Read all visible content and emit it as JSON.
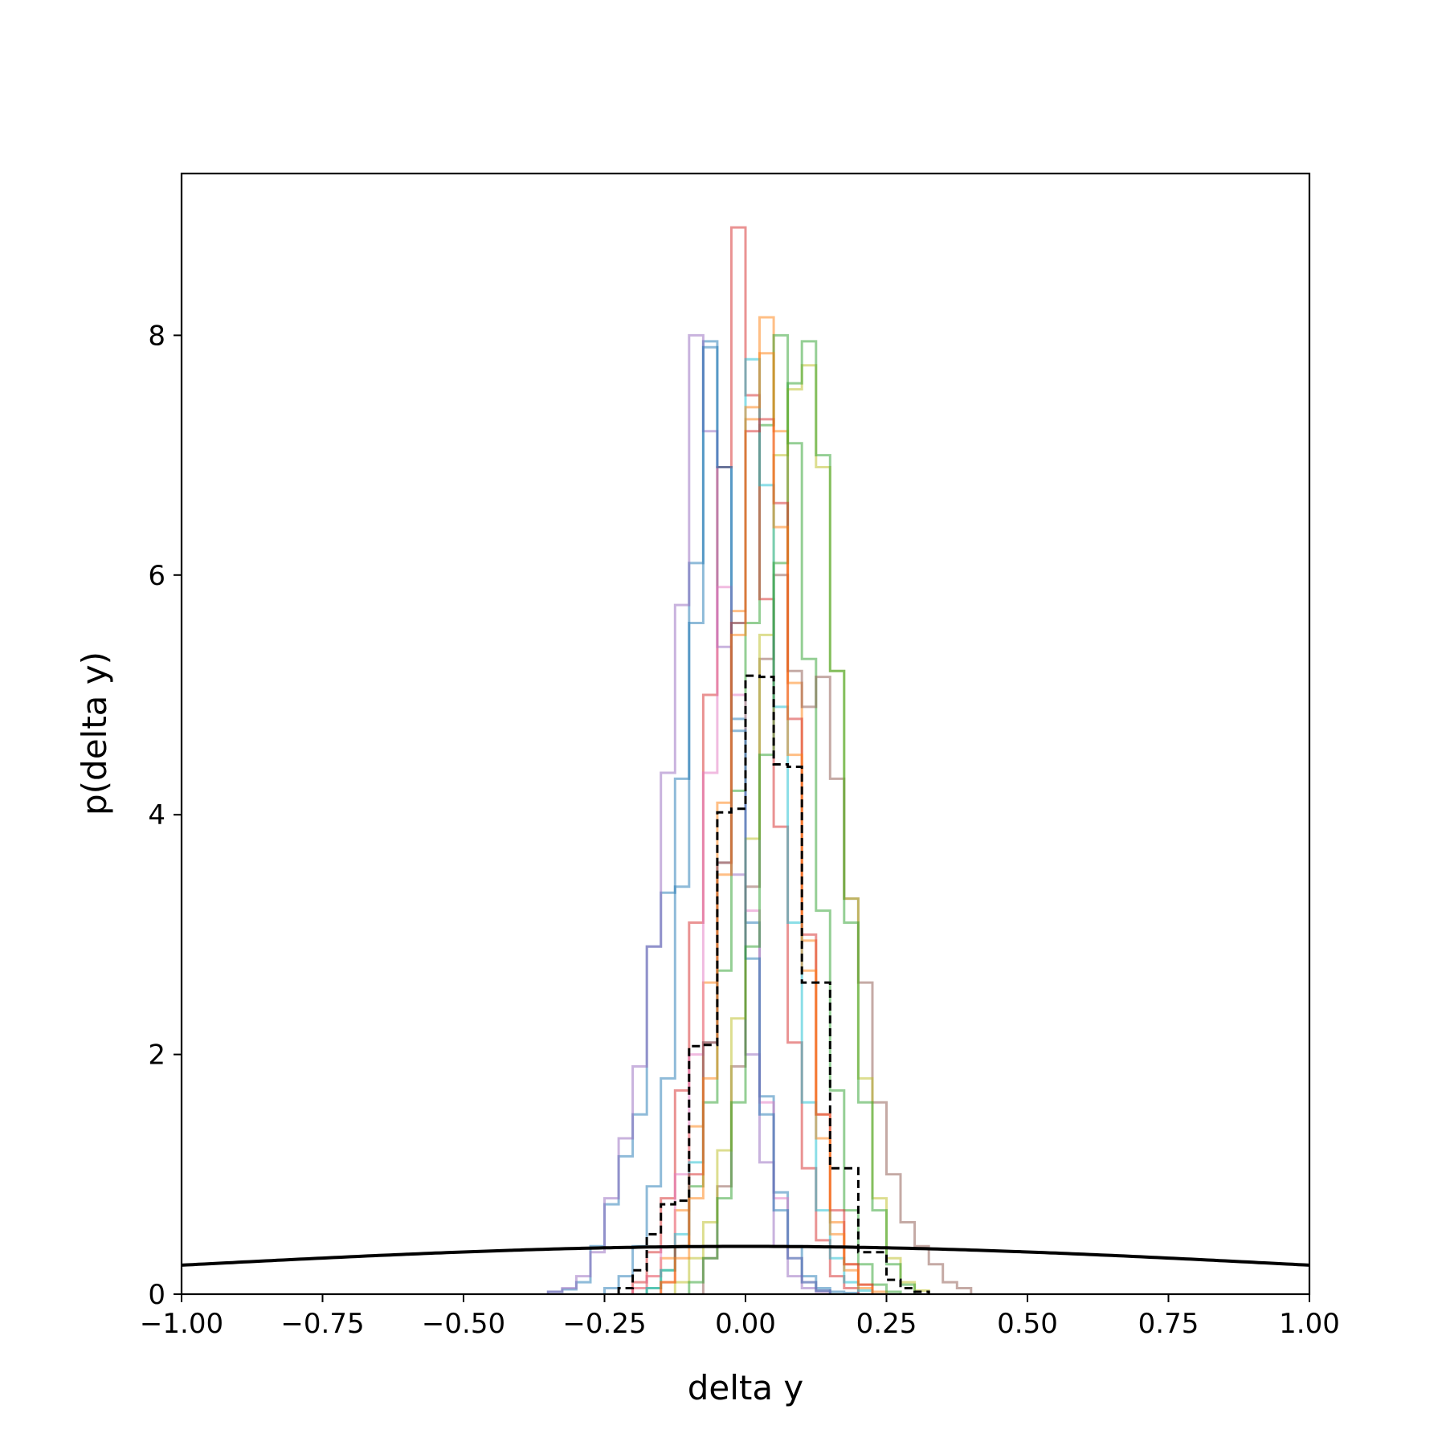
{
  "chart_data": {
    "type": "histogram",
    "title": "",
    "xlabel": "delta y",
    "ylabel": "p(delta y)",
    "xlim": [
      -1.0,
      1.0
    ],
    "ylim": [
      0,
      9.35
    ],
    "xticks": [
      -1.0,
      -0.75,
      -0.5,
      -0.25,
      0.0,
      0.25,
      0.5,
      0.75,
      1.0
    ],
    "xtick_labels": [
      "−1.00",
      "−0.75",
      "−0.50",
      "−0.25",
      "0.00",
      "0.25",
      "0.50",
      "0.75",
      "1.00"
    ],
    "yticks": [
      0,
      2,
      4,
      6,
      8
    ],
    "ytick_labels": [
      "0",
      "2",
      "4",
      "6",
      "8"
    ],
    "grid": false,
    "legend": "none",
    "series": [
      {
        "color": "#1f77b4",
        "bin_start": -0.35,
        "bin_width": 0.025,
        "counts": [
          0.02,
          0.04,
          0.1,
          0.4,
          0.75,
          1.15,
          1.5,
          2.9,
          3.35,
          4.3,
          6.1,
          7.95,
          6.9,
          4.8,
          3.1,
          1.65,
          0.85,
          0.4,
          0.15,
          0.05,
          0.02,
          0.01
        ]
      },
      {
        "color": "#ff7f0e",
        "bin_start": -0.2,
        "bin_width": 0.025,
        "counts": [
          0.05,
          0.15,
          0.3,
          0.7,
          1.4,
          2.6,
          4.1,
          5.7,
          7.3,
          8.15,
          7.2,
          5.1,
          2.95,
          1.5,
          0.6,
          0.25,
          0.08,
          0.02
        ]
      },
      {
        "color": "#2ca02c",
        "bin_start": -0.175,
        "bin_width": 0.025,
        "counts": [
          0.05,
          0.2,
          0.4,
          0.9,
          1.6,
          2.7,
          4.2,
          5.6,
          7.25,
          8.0,
          7.1,
          5.3,
          3.2,
          1.7,
          0.7,
          0.25,
          0.08,
          0.02
        ]
      },
      {
        "color": "#d62728",
        "bin_start": -0.2,
        "bin_width": 0.025,
        "counts": [
          0.1,
          0.35,
          0.8,
          1.7,
          3.1,
          5.0,
          6.9,
          8.9,
          7.5,
          5.8,
          3.9,
          2.1,
          1.05,
          0.45,
          0.15,
          0.05
        ]
      },
      {
        "color": "#9467bd",
        "bin_start": -0.35,
        "bin_width": 0.025,
        "counts": [
          0.02,
          0.05,
          0.15,
          0.35,
          0.8,
          1.3,
          1.9,
          2.9,
          4.35,
          5.75,
          8.0,
          7.2,
          5.4,
          3.5,
          2.0,
          1.1,
          0.4,
          0.15,
          0.05,
          0.02
        ]
      },
      {
        "color": "#8c564b",
        "bin_start": -0.075,
        "bin_width": 0.025,
        "counts": [
          0.3,
          0.9,
          1.9,
          3.4,
          5.3,
          6.0,
          5.2,
          4.9,
          5.15,
          4.3,
          3.3,
          2.6,
          1.6,
          1.0,
          0.6,
          0.4,
          0.25,
          0.1,
          0.05
        ]
      },
      {
        "color": "#e377c2",
        "bin_start": -0.2,
        "bin_width": 0.025,
        "counts": [
          0.05,
          0.15,
          0.4,
          1.0,
          2.0,
          4.35,
          5.9,
          5.0,
          3.2,
          1.6,
          0.8,
          0.3,
          0.1,
          0.03
        ]
      },
      {
        "color": "#bcbd22",
        "bin_start": -0.125,
        "bin_width": 0.025,
        "counts": [
          0.1,
          0.3,
          0.6,
          1.2,
          2.3,
          3.8,
          5.5,
          7.0,
          7.55,
          7.75,
          6.9,
          5.2,
          3.3,
          1.8,
          0.8,
          0.3,
          0.1,
          0.03
        ]
      },
      {
        "color": "#17becf",
        "bin_start": -0.175,
        "bin_width": 0.025,
        "counts": [
          0.05,
          0.2,
          0.5,
          1.1,
          2.1,
          3.6,
          5.6,
          7.8,
          6.75,
          4.9,
          3.1,
          1.6,
          0.7,
          0.3,
          0.1,
          0.03
        ]
      },
      {
        "color": "#1f77b4",
        "bin_start": -0.25,
        "bin_width": 0.025,
        "counts": [
          0.05,
          0.15,
          0.4,
          0.9,
          1.8,
          3.4,
          5.6,
          7.9,
          6.9,
          4.7,
          2.8,
          1.5,
          0.7,
          0.3,
          0.1,
          0.03
        ]
      },
      {
        "color": "#2ca02c",
        "bin_start": -0.1,
        "bin_width": 0.025,
        "counts": [
          0.1,
          0.3,
          0.8,
          1.6,
          2.9,
          4.5,
          6.1,
          7.6,
          7.95,
          7.0,
          5.2,
          3.1,
          1.6,
          0.7,
          0.25,
          0.08
        ]
      },
      {
        "color": "#d62728",
        "bin_start": -0.15,
        "bin_width": 0.025,
        "counts": [
          0.1,
          0.4,
          1.0,
          2.1,
          3.6,
          5.6,
          7.2,
          7.3,
          6.6,
          4.8,
          3.0,
          1.5,
          0.7,
          0.25,
          0.08
        ]
      },
      {
        "color": "#ff7f0e",
        "bin_start": -0.15,
        "bin_width": 0.025,
        "counts": [
          0.1,
          0.3,
          0.8,
          1.8,
          3.5,
          5.5,
          7.4,
          7.85,
          6.4,
          4.5,
          2.7,
          1.3,
          0.5,
          0.2,
          0.05
        ]
      }
    ],
    "aggregate": {
      "color": "#000000",
      "style": "dashed",
      "bin_start": -0.225,
      "bin_width": 0.025,
      "counts": [
        0.05,
        0.2,
        0.5,
        0.75,
        0.78,
        2.07,
        2.08,
        4.02,
        4.05,
        5.16,
        5.15,
        4.42,
        4.4,
        2.6,
        2.6,
        1.05,
        1.05,
        0.35,
        0.35,
        0.12,
        0.05,
        0.02
      ]
    },
    "reference_curve": {
      "type": "normal_pdf",
      "mean": 0.0,
      "std": 1.0,
      "color": "#000000"
    }
  }
}
